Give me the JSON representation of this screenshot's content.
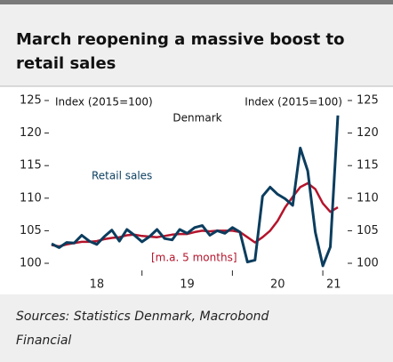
{
  "chart_data": {
    "type": "line",
    "title": "March reopening a massive boost to retail sales",
    "title_lines": [
      "March reopening a massive boost to",
      "retail sales"
    ],
    "annotations": {
      "left_axis_label": "Index (2015=100)",
      "right_axis_label": "Index (2015=100)",
      "country": "Denmark"
    },
    "source_lines": [
      "Sources: Statistics Denmark, Macrobond",
      "Financial"
    ],
    "x": [
      2018.0,
      2018.0833,
      2018.1667,
      2018.25,
      2018.3333,
      2018.4167,
      2018.5,
      2018.5833,
      2018.6667,
      2018.75,
      2018.8333,
      2018.9167,
      2019.0,
      2019.0833,
      2019.1667,
      2019.25,
      2019.3333,
      2019.4167,
      2019.5,
      2019.5833,
      2019.6667,
      2019.75,
      2019.8333,
      2019.9167,
      2020.0,
      2020.0833,
      2020.1667,
      2020.25,
      2020.3333,
      2020.4167,
      2020.5,
      2020.5833,
      2020.6667,
      2020.75,
      2020.8333,
      2020.9167,
      2021.0,
      2021.0833,
      2021.1667
    ],
    "series": [
      {
        "name": "Retail sales",
        "color": "#0b3d5e",
        "values": [
          103.0,
          102.4,
          103.2,
          103.1,
          104.3,
          103.4,
          102.9,
          104.1,
          105.1,
          103.4,
          105.2,
          104.3,
          103.3,
          104.1,
          105.2,
          103.8,
          103.6,
          105.2,
          104.6,
          105.5,
          105.8,
          104.3,
          105.0,
          104.6,
          105.5,
          104.8,
          100.2,
          100.5,
          110.3,
          111.7,
          110.6,
          109.9,
          108.9,
          117.7,
          114.2,
          104.8,
          99.6,
          102.5,
          122.7
        ]
      },
      {
        "name": "[m.a. 5 months]",
        "color": "#b5142b",
        "values": [
          102.8,
          102.6,
          102.9,
          103.1,
          103.3,
          103.3,
          103.4,
          103.7,
          103.9,
          104.0,
          104.3,
          104.4,
          104.2,
          104.1,
          104.0,
          104.2,
          104.4,
          104.5,
          104.5,
          104.8,
          105.0,
          104.9,
          105.0,
          105.0,
          105.0,
          104.8,
          104.0,
          103.2,
          104.0,
          105.0,
          106.5,
          108.6,
          110.2,
          111.7,
          112.3,
          111.4,
          109.2,
          107.9,
          108.6
        ]
      }
    ],
    "xlim": [
      2018.0,
      2021.25
    ],
    "xticks": [
      {
        "value": 2018.5,
        "label": "18"
      },
      {
        "value": 2019.5,
        "label": "19"
      },
      {
        "value": 2020.5,
        "label": "20"
      },
      {
        "value": 2021.12,
        "label": "21"
      }
    ],
    "xboundaries": [
      2019,
      2020,
      2021
    ],
    "ylim": [
      98.5,
      125
    ],
    "yticks": [
      100,
      105,
      110,
      115,
      120,
      125
    ],
    "y2lim": [
      98.5,
      125
    ],
    "y2ticks": [
      100,
      105,
      110,
      115,
      120,
      125
    ]
  }
}
